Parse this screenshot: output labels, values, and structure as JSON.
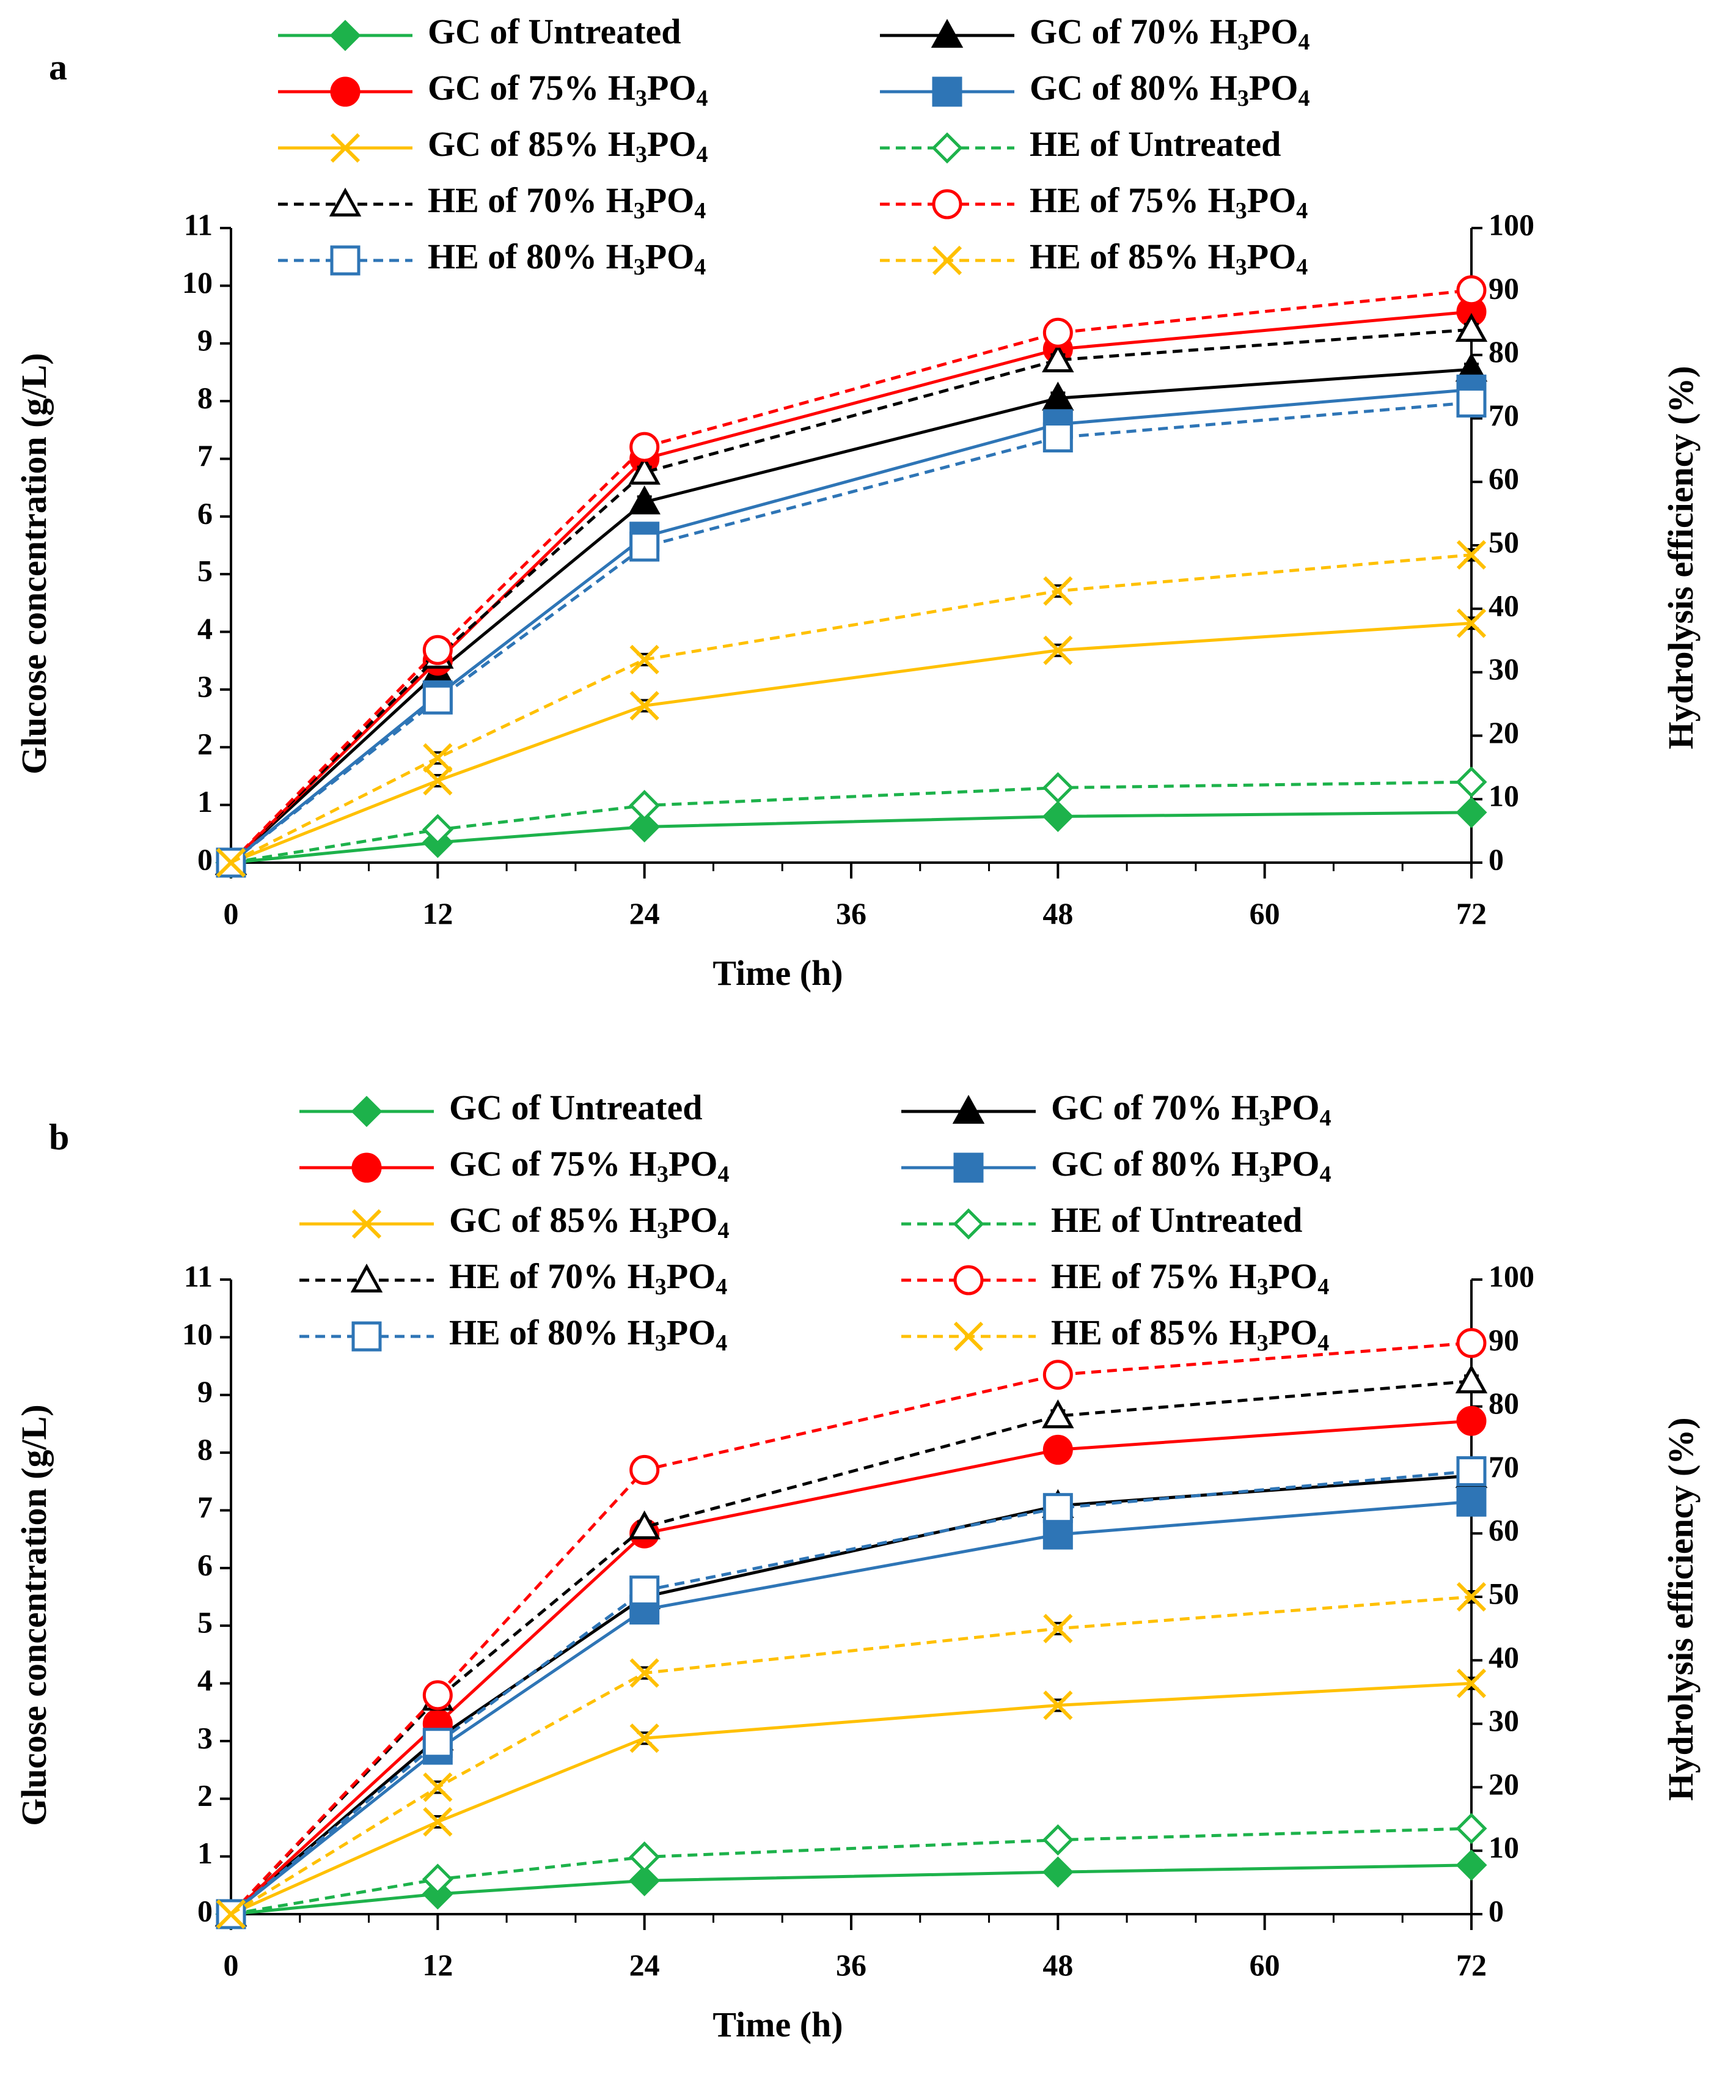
{
  "chart_data": [
    {
      "type": "line",
      "panel_label": "a",
      "xlabel": "Time (h)",
      "ylabel": "Glucose concentration (g/L)",
      "y2label": "Hydrolysis efficiency (%)",
      "x_ticks": [
        "0",
        "12",
        "24",
        "36",
        "48",
        "60",
        "72"
      ],
      "y_ticks": [
        "0",
        "1",
        "2",
        "3",
        "4",
        "5",
        "6",
        "7",
        "8",
        "9",
        "10",
        "11"
      ],
      "y2_ticks": [
        "0",
        "10",
        "20",
        "30",
        "40",
        "50",
        "60",
        "70",
        "80",
        "90",
        "100"
      ],
      "xlim": [
        0,
        72
      ],
      "ylim": [
        0,
        11
      ],
      "y2lim": [
        0,
        100
      ],
      "x": [
        0,
        12,
        24,
        48,
        72
      ],
      "series": [
        {
          "name": "GC of Untreated",
          "base": "GC of ",
          "sub_pre": "",
          "sub": "",
          "sub_post": "Untreated",
          "axis": "left",
          "color": "#1db24b",
          "dash": "solid",
          "marker": "diamond-filled",
          "values": [
            0,
            0.35,
            0.62,
            0.8,
            0.87
          ]
        },
        {
          "name": "GC of 70% H3PO4",
          "base": "GC of 70% H",
          "sub_pre": "3",
          "sub": "PO",
          "sub_post": "4",
          "axis": "left",
          "color": "#000000",
          "dash": "solid",
          "marker": "triangle-filled",
          "values": [
            0,
            3.3,
            6.25,
            8.05,
            8.55
          ]
        },
        {
          "name": "GC of 75% H3PO4",
          "base": "GC of 75% H",
          "sub_pre": "3",
          "sub": "PO",
          "sub_post": "4",
          "axis": "left",
          "color": "#ff0000",
          "dash": "solid",
          "marker": "circle-filled",
          "values": [
            0,
            3.5,
            7.0,
            8.9,
            9.55
          ]
        },
        {
          "name": "GC of 80% H3PO4",
          "base": "GC of 80% H",
          "sub_pre": "3",
          "sub": "PO",
          "sub_post": "4",
          "axis": "left",
          "color": "#2e75b6",
          "dash": "solid",
          "marker": "square-filled",
          "values": [
            0,
            2.9,
            5.65,
            7.6,
            8.2
          ]
        },
        {
          "name": "GC of 85% H3PO4",
          "base": "GC of 85% H",
          "sub_pre": "3",
          "sub": "PO",
          "sub_post": "4",
          "axis": "left",
          "color": "#ffc000",
          "dash": "solid",
          "marker": "x",
          "values": [
            0,
            1.42,
            2.72,
            3.68,
            4.15
          ]
        },
        {
          "name": "HE of Untreated",
          "base": "HE of ",
          "sub_pre": "",
          "sub": "",
          "sub_post": "Untreated",
          "axis": "right",
          "color": "#1db24b",
          "dash": "dashed",
          "marker": "diamond-open",
          "values": [
            0,
            5.2,
            9.0,
            11.8,
            12.7
          ]
        },
        {
          "name": "HE of 70% H3PO4",
          "base": "HE of 70% H",
          "sub_pre": "3",
          "sub": "PO",
          "sub_post": "4",
          "axis": "right",
          "color": "#000000",
          "dash": "dashed",
          "marker": "triangle-open",
          "values": [
            0,
            32.5,
            61.5,
            79.2,
            84.0
          ]
        },
        {
          "name": "HE of 75% H3PO4",
          "base": "HE of 75% H",
          "sub_pre": "3",
          "sub": "PO",
          "sub_post": "4",
          "axis": "right",
          "color": "#ff0000",
          "dash": "dashed",
          "marker": "circle-open",
          "values": [
            0,
            33.5,
            65.5,
            83.5,
            90.2
          ]
        },
        {
          "name": "HE of 80% H3PO4",
          "base": "HE of 80% H",
          "sub_pre": "3",
          "sub": "PO",
          "sub_post": "4",
          "axis": "right",
          "color": "#2e75b6",
          "dash": "dashed",
          "marker": "square-open",
          "values": [
            0,
            25.7,
            49.8,
            67.0,
            72.5
          ]
        },
        {
          "name": "HE of 85% H3PO4",
          "base": "HE of 85% H",
          "sub_pre": "3",
          "sub": "PO",
          "sub_post": "4",
          "axis": "right",
          "color": "#ffc000",
          "dash": "dashed",
          "marker": "x",
          "values": [
            0,
            16.5,
            32.0,
            42.8,
            48.5
          ]
        }
      ]
    },
    {
      "type": "line",
      "panel_label": "b",
      "xlabel": "Time (h)",
      "ylabel": "Glucose concentration (g/L)",
      "y2label": "Hydrolysis efficiency (%)",
      "x_ticks": [
        "0",
        "12",
        "24",
        "36",
        "48",
        "60",
        "72"
      ],
      "y_ticks": [
        "0",
        "1",
        "2",
        "3",
        "4",
        "5",
        "6",
        "7",
        "8",
        "9",
        "10",
        "11"
      ],
      "y2_ticks": [
        "0",
        "10",
        "20",
        "30",
        "40",
        "50",
        "60",
        "70",
        "80",
        "90",
        "100"
      ],
      "xlim": [
        0,
        72
      ],
      "ylim": [
        0,
        11
      ],
      "y2lim": [
        0,
        100
      ],
      "x": [
        0,
        12,
        24,
        48,
        72
      ],
      "series": [
        {
          "name": "GC of Untreated",
          "base": "GC of ",
          "sub_pre": "",
          "sub": "",
          "sub_post": "Untreated",
          "axis": "left",
          "color": "#1db24b",
          "dash": "solid",
          "marker": "diamond-filled",
          "values": [
            0,
            0.35,
            0.58,
            0.73,
            0.85
          ]
        },
        {
          "name": "GC of 70% H3PO4",
          "base": "GC of 70% H",
          "sub_pre": "3",
          "sub": "PO",
          "sub_post": "4",
          "axis": "left",
          "color": "#000000",
          "dash": "solid",
          "marker": "triangle-filled",
          "values": [
            0,
            3.05,
            5.5,
            7.08,
            7.6
          ]
        },
        {
          "name": "GC of 75% H3PO4",
          "base": "GC of 75% H",
          "sub_pre": "3",
          "sub": "PO",
          "sub_post": "4",
          "axis": "left",
          "color": "#ff0000",
          "dash": "solid",
          "marker": "circle-filled",
          "values": [
            0,
            3.3,
            6.6,
            8.05,
            8.55
          ]
        },
        {
          "name": "GC of 80% H3PO4",
          "base": "GC of 80% H",
          "sub_pre": "3",
          "sub": "PO",
          "sub_post": "4",
          "axis": "left",
          "color": "#2e75b6",
          "dash": "solid",
          "marker": "square-filled",
          "values": [
            0,
            2.85,
            5.28,
            6.58,
            7.15
          ]
        },
        {
          "name": "GC of 85% H3PO4",
          "base": "GC of 85% H",
          "sub_pre": "3",
          "sub": "PO",
          "sub_post": "4",
          "axis": "left",
          "color": "#ffc000",
          "dash": "solid",
          "marker": "x",
          "values": [
            0,
            1.6,
            3.05,
            3.62,
            4.0
          ]
        },
        {
          "name": "HE of Untreated",
          "base": "HE of ",
          "sub_pre": "",
          "sub": "",
          "sub_post": "Untreated",
          "axis": "right",
          "color": "#1db24b",
          "dash": "dashed",
          "marker": "diamond-open",
          "values": [
            0,
            5.5,
            9.0,
            11.7,
            13.5
          ]
        },
        {
          "name": "HE of 70% H3PO4",
          "base": "HE of 70% H",
          "sub_pre": "3",
          "sub": "PO",
          "sub_post": "4",
          "axis": "right",
          "color": "#000000",
          "dash": "dashed",
          "marker": "triangle-open",
          "values": [
            0,
            34.0,
            61.0,
            78.5,
            84.0
          ]
        },
        {
          "name": "HE of 75% H3PO4",
          "base": "HE of 75% H",
          "sub_pre": "3",
          "sub": "PO",
          "sub_post": "4",
          "axis": "right",
          "color": "#ff0000",
          "dash": "dashed",
          "marker": "circle-open",
          "values": [
            0,
            34.5,
            70.0,
            85.0,
            90.0
          ]
        },
        {
          "name": "HE of 80% H3PO4",
          "base": "HE of 80% H",
          "sub_pre": "3",
          "sub": "PO",
          "sub_post": "4",
          "axis": "right",
          "color": "#2e75b6",
          "dash": "dashed",
          "marker": "square-open",
          "values": [
            0,
            27.0,
            51.0,
            64.0,
            69.8
          ]
        },
        {
          "name": "HE of 85% H3PO4",
          "base": "HE of 85% H",
          "sub_pre": "3",
          "sub": "PO",
          "sub_post": "4",
          "axis": "right",
          "color": "#ffc000",
          "dash": "dashed",
          "marker": "x",
          "values": [
            0,
            20.0,
            38.0,
            45.0,
            50.0
          ]
        }
      ]
    }
  ]
}
